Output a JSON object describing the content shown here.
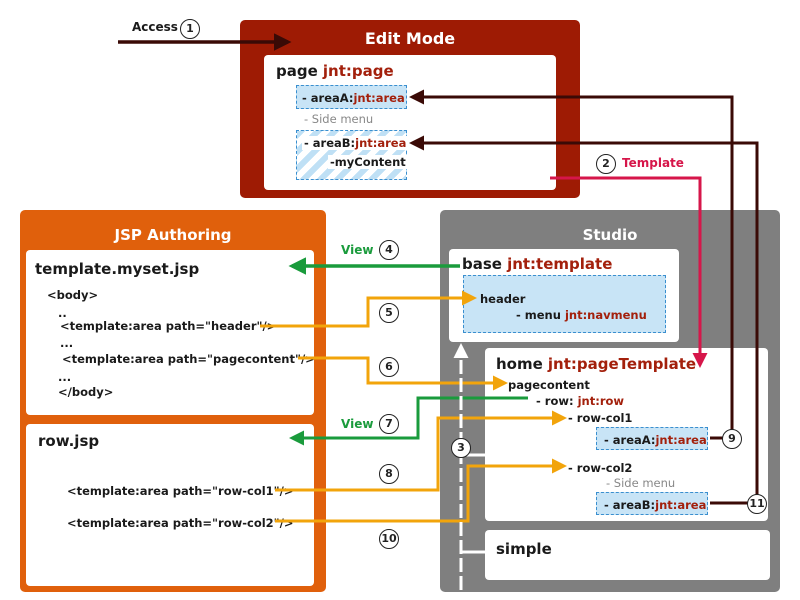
{
  "access": {
    "label": "Access",
    "step": "1"
  },
  "edit_mode": {
    "title": "Edit Mode",
    "page_name": "page",
    "page_type": "jnt:page",
    "area_a_name": "- areaA:",
    "area_a_type": "jnt:area",
    "side_menu": "- Side menu",
    "area_b_name": "- areaB:",
    "area_b_type": "jnt:area",
    "my_content": "-myContent"
  },
  "template_link": {
    "step": "2",
    "label": "Template"
  },
  "jsp_authoring": {
    "title": "JSP Authoring",
    "template_file": "template.myset.jsp",
    "template_lines": [
      "<body>",
      "..",
      "<template:area path=\"header\"/>",
      "...",
      "<template:area path=\"pagecontent\"/>",
      "...",
      "</body>"
    ],
    "row_file": "row.jsp",
    "row_lines": [
      "<template:area path=\"row-col1\"/>",
      "<template:area path=\"row-col2\"/>"
    ]
  },
  "studio": {
    "title": "Studio",
    "base_name": "base",
    "base_type": "jnt:template",
    "header": "header",
    "menu_prefix": "- menu",
    "menu_type": "jnt:navmenu",
    "home_name": "home",
    "home_type": "jnt:pageTemplate",
    "pagecontent": "pagecontent",
    "row_prefix": "- row:",
    "row_type": "jnt:row",
    "row_col1": "- row-col1",
    "area_a_name": "- areaA:",
    "area_a_type": "jnt:area",
    "row_col2": "- row-col2",
    "side_menu": "- Side menu",
    "area_b_name": "- areaB:",
    "area_b_type": "jnt:area",
    "simple": "simple"
  },
  "steps": {
    "view_label_1": "View",
    "view_label_2": "View",
    "s3": "3",
    "s4": "4",
    "s5": "5",
    "s6": "6",
    "s7": "7",
    "s8": "8",
    "s9": "9",
    "s10": "10",
    "s11": "11"
  },
  "colors": {
    "edit_mode": "#9e1b04",
    "jsp_authoring": "#e0600c",
    "studio": "#7f7f7f",
    "area_fill": "#c8e4f6",
    "view_arrow": "#1a9b3c",
    "template_arrow": "#d6164a",
    "include_arrow": "#f2a40b",
    "link_arrow": "#3a0a06"
  }
}
